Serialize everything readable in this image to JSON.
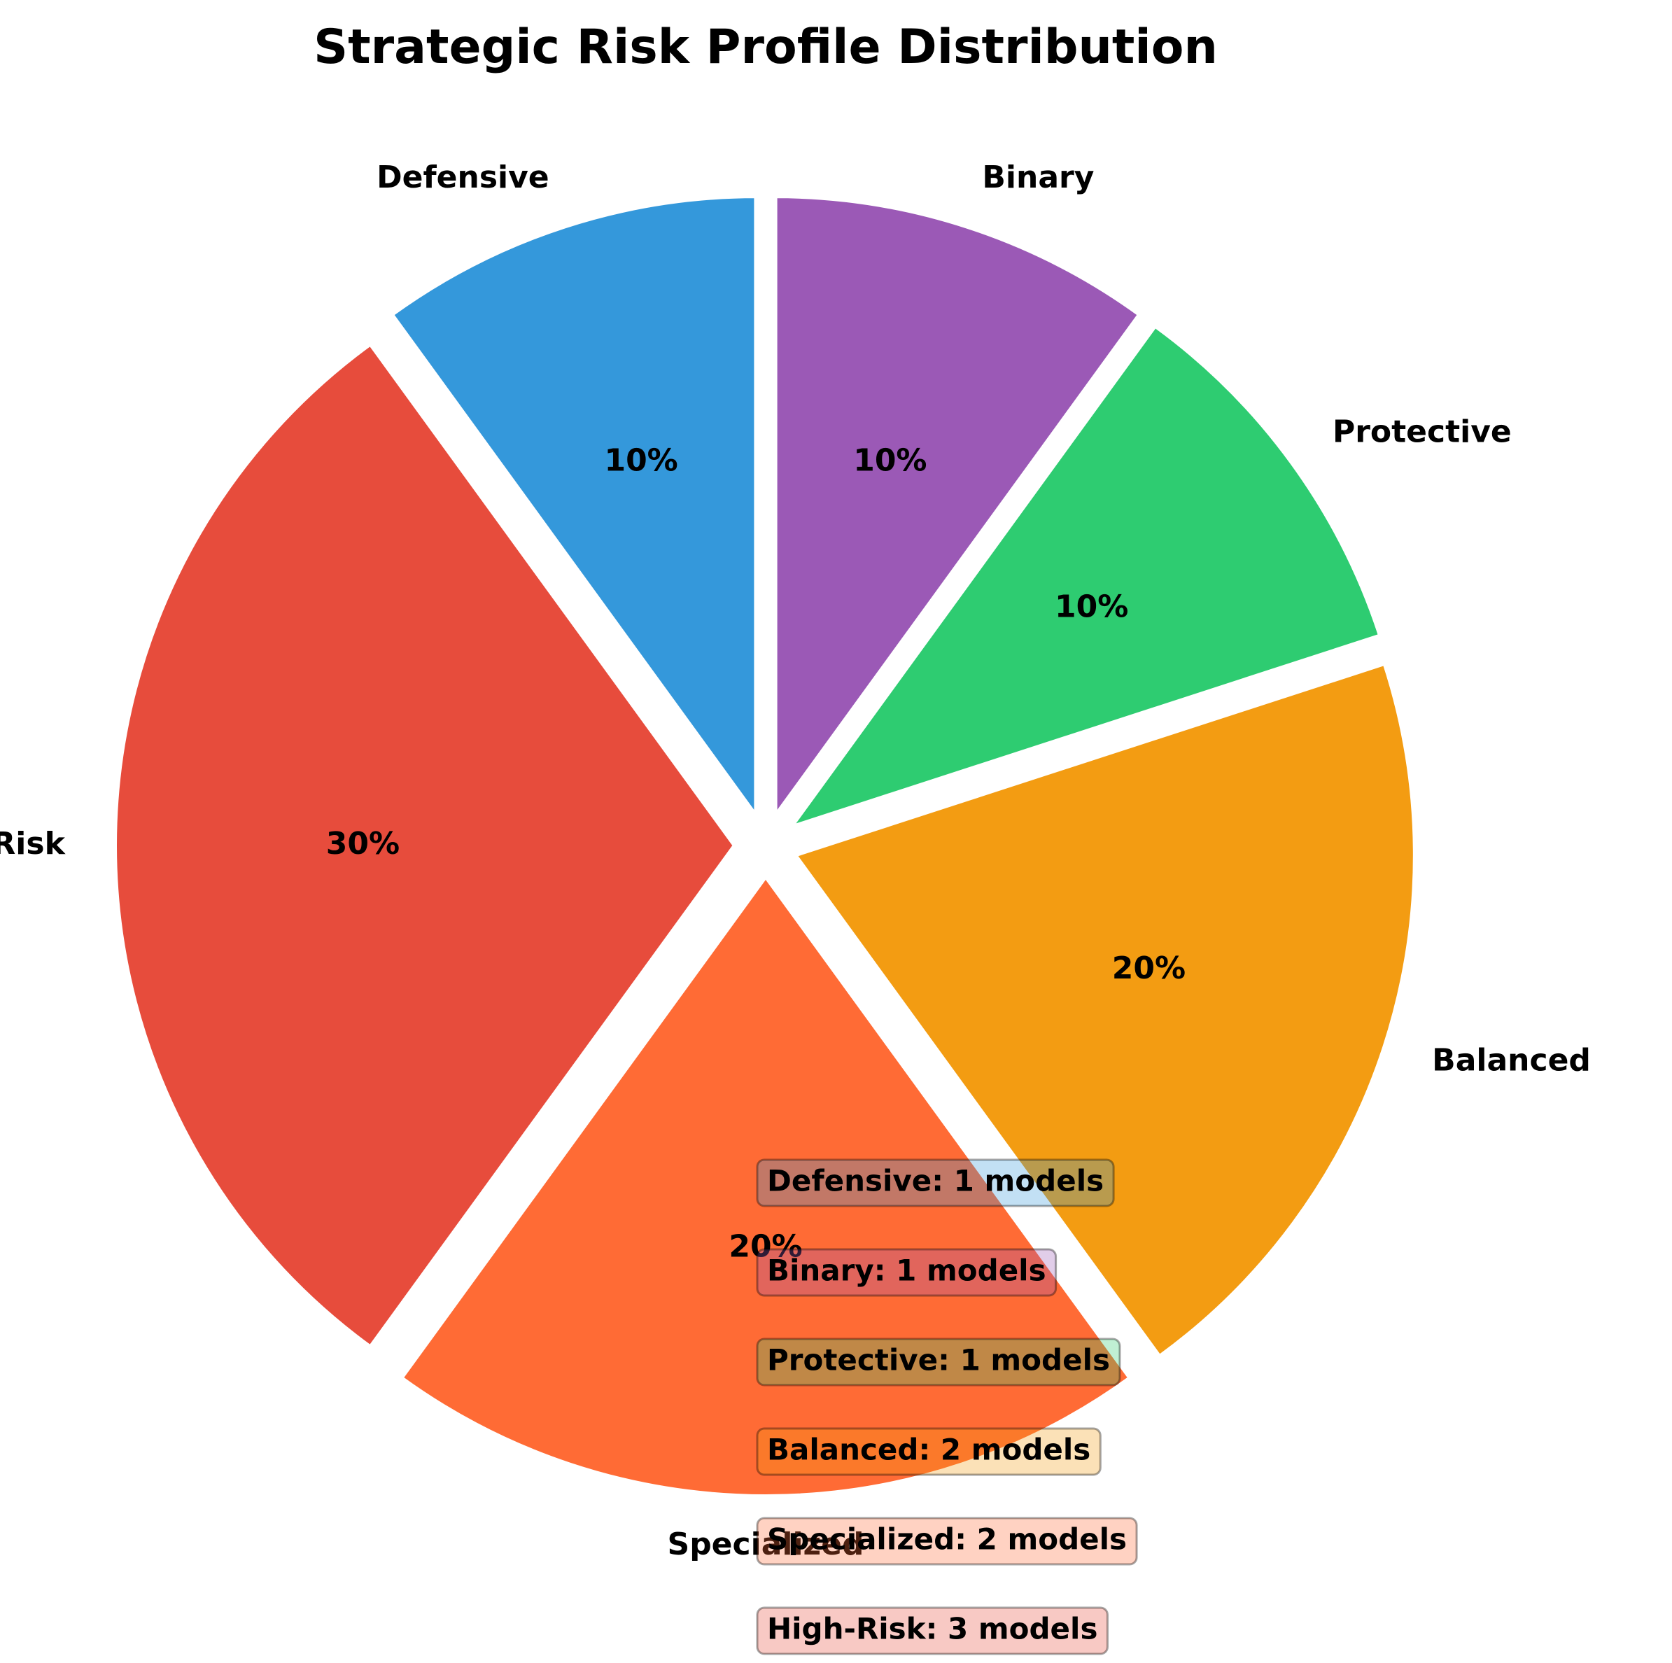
{
  "chart_data": {
    "type": "pie",
    "title": "Strategic Risk Profile Distribution",
    "start_angle_deg": 90,
    "direction": "counterclockwise",
    "slices": [
      {
        "label": "Defensive",
        "percent": 10,
        "count": 1,
        "color": "#3498db",
        "pct_text": "10%",
        "count_text": "Defensive: 1 models"
      },
      {
        "label": "High-Risk",
        "percent": 30,
        "count": 3,
        "color": "#e74c3c",
        "pct_text": "30%",
        "count_text": "High-Risk: 3 models"
      },
      {
        "label": "Specialized",
        "percent": 20,
        "count": 2,
        "color": "#ff6b35",
        "pct_text": "20%",
        "count_text": "Specialized: 2 models"
      },
      {
        "label": "Balanced",
        "percent": 20,
        "count": 2,
        "color": "#f39c12",
        "pct_text": "20%",
        "count_text": "Balanced: 2 models"
      },
      {
        "label": "Protective",
        "percent": 10,
        "count": 1,
        "color": "#2ecc71",
        "pct_text": "10%",
        "count_text": "Protective: 1 models"
      },
      {
        "label": "Binary",
        "percent": 10,
        "count": 1,
        "color": "#9b59b6",
        "pct_text": "10%",
        "count_text": "Binary: 1 models"
      }
    ],
    "count_box_order": [
      "Defensive",
      "Binary",
      "Protective",
      "Balanced",
      "Specialized",
      "High-Risk"
    ]
  }
}
